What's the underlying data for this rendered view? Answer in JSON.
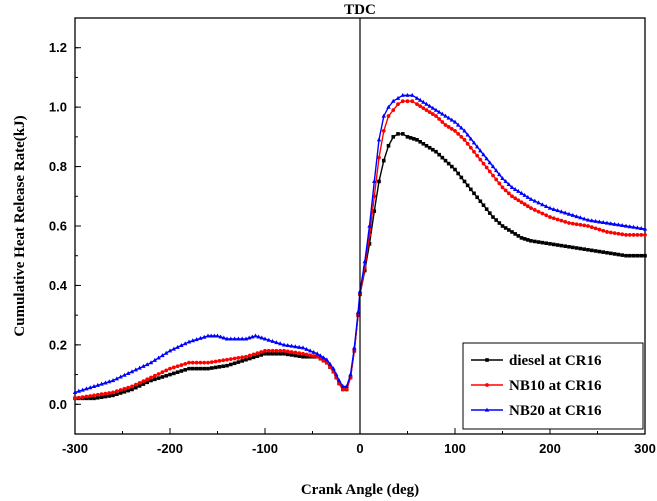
{
  "chart_data": {
    "type": "line",
    "xlabel": "Crank Angle (deg)",
    "ylabel": "Cumulative Heat Release Rate(kJ)",
    "xlim": [
      -300,
      300
    ],
    "ylim": [
      -0.1,
      1.3
    ],
    "xticks": [
      -300,
      -200,
      -100,
      0,
      100,
      200,
      300
    ],
    "yticks": [
      0.0,
      0.2,
      0.4,
      0.6,
      0.8,
      1.0,
      1.2
    ],
    "xtick_labels": [
      "-300",
      "-200",
      "-100",
      "0",
      "100",
      "200",
      "300"
    ],
    "ytick_labels": [
      "0.0",
      "0.2",
      "0.4",
      "0.6",
      "0.8",
      "1.0",
      "1.2"
    ],
    "annotations": [
      {
        "text": "TDC",
        "x": 0
      }
    ],
    "legend_position": "bottom-right",
    "grid": false,
    "series": [
      {
        "name": "diesel at CR16",
        "color": "#000000",
        "marker": "square",
        "points": [
          [
            -300,
            0.02
          ],
          [
            -280,
            0.02
          ],
          [
            -260,
            0.03
          ],
          [
            -240,
            0.05
          ],
          [
            -220,
            0.08
          ],
          [
            -200,
            0.1
          ],
          [
            -180,
            0.12
          ],
          [
            -160,
            0.12
          ],
          [
            -140,
            0.13
          ],
          [
            -120,
            0.15
          ],
          [
            -100,
            0.17
          ],
          [
            -80,
            0.17
          ],
          [
            -60,
            0.16
          ],
          [
            -45,
            0.16
          ],
          [
            -35,
            0.14
          ],
          [
            -28,
            0.11
          ],
          [
            -22,
            0.07
          ],
          [
            -18,
            0.05
          ],
          [
            -14,
            0.05
          ],
          [
            -10,
            0.09
          ],
          [
            -6,
            0.18
          ],
          [
            -2,
            0.3
          ],
          [
            0,
            0.37
          ],
          [
            5,
            0.45
          ],
          [
            10,
            0.54
          ],
          [
            15,
            0.65
          ],
          [
            20,
            0.75
          ],
          [
            25,
            0.82
          ],
          [
            30,
            0.87
          ],
          [
            35,
            0.9
          ],
          [
            40,
            0.91
          ],
          [
            45,
            0.91
          ],
          [
            50,
            0.9
          ],
          [
            60,
            0.89
          ],
          [
            70,
            0.87
          ],
          [
            80,
            0.85
          ],
          [
            90,
            0.82
          ],
          [
            100,
            0.79
          ],
          [
            110,
            0.75
          ],
          [
            120,
            0.71
          ],
          [
            130,
            0.67
          ],
          [
            140,
            0.63
          ],
          [
            150,
            0.6
          ],
          [
            160,
            0.58
          ],
          [
            170,
            0.56
          ],
          [
            180,
            0.55
          ],
          [
            200,
            0.54
          ],
          [
            220,
            0.53
          ],
          [
            240,
            0.52
          ],
          [
            260,
            0.51
          ],
          [
            280,
            0.5
          ],
          [
            300,
            0.5
          ]
        ]
      },
      {
        "name": "NB10 at CR16",
        "color": "#ff0000",
        "marker": "circle",
        "points": [
          [
            -300,
            0.02
          ],
          [
            -280,
            0.03
          ],
          [
            -260,
            0.04
          ],
          [
            -240,
            0.06
          ],
          [
            -220,
            0.09
          ],
          [
            -200,
            0.12
          ],
          [
            -180,
            0.14
          ],
          [
            -160,
            0.14
          ],
          [
            -140,
            0.15
          ],
          [
            -120,
            0.16
          ],
          [
            -100,
            0.18
          ],
          [
            -80,
            0.18
          ],
          [
            -60,
            0.17
          ],
          [
            -45,
            0.16
          ],
          [
            -35,
            0.14
          ],
          [
            -28,
            0.11
          ],
          [
            -22,
            0.07
          ],
          [
            -18,
            0.05
          ],
          [
            -14,
            0.05
          ],
          [
            -10,
            0.09
          ],
          [
            -6,
            0.18
          ],
          [
            -2,
            0.3
          ],
          [
            0,
            0.37
          ],
          [
            5,
            0.46
          ],
          [
            10,
            0.57
          ],
          [
            15,
            0.7
          ],
          [
            20,
            0.83
          ],
          [
            25,
            0.92
          ],
          [
            30,
            0.97
          ],
          [
            35,
            0.99
          ],
          [
            40,
            1.01
          ],
          [
            45,
            1.02
          ],
          [
            50,
            1.02
          ],
          [
            55,
            1.02
          ],
          [
            60,
            1.01
          ],
          [
            70,
            0.99
          ],
          [
            80,
            0.97
          ],
          [
            90,
            0.94
          ],
          [
            100,
            0.92
          ],
          [
            110,
            0.89
          ],
          [
            120,
            0.85
          ],
          [
            130,
            0.81
          ],
          [
            140,
            0.77
          ],
          [
            150,
            0.73
          ],
          [
            160,
            0.7
          ],
          [
            170,
            0.68
          ],
          [
            180,
            0.66
          ],
          [
            200,
            0.63
          ],
          [
            220,
            0.61
          ],
          [
            240,
            0.6
          ],
          [
            260,
            0.58
          ],
          [
            280,
            0.57
          ],
          [
            300,
            0.57
          ]
        ]
      },
      {
        "name": "NB20 at CR16",
        "color": "#0000ff",
        "marker": "triangle",
        "points": [
          [
            -300,
            0.04
          ],
          [
            -280,
            0.06
          ],
          [
            -260,
            0.08
          ],
          [
            -240,
            0.11
          ],
          [
            -220,
            0.14
          ],
          [
            -200,
            0.18
          ],
          [
            -180,
            0.21
          ],
          [
            -160,
            0.23
          ],
          [
            -150,
            0.23
          ],
          [
            -140,
            0.22
          ],
          [
            -120,
            0.22
          ],
          [
            -110,
            0.23
          ],
          [
            -100,
            0.22
          ],
          [
            -80,
            0.2
          ],
          [
            -60,
            0.19
          ],
          [
            -45,
            0.17
          ],
          [
            -35,
            0.15
          ],
          [
            -28,
            0.12
          ],
          [
            -22,
            0.08
          ],
          [
            -18,
            0.06
          ],
          [
            -14,
            0.06
          ],
          [
            -10,
            0.1
          ],
          [
            -6,
            0.19
          ],
          [
            -2,
            0.31
          ],
          [
            0,
            0.38
          ],
          [
            5,
            0.48
          ],
          [
            10,
            0.6
          ],
          [
            15,
            0.75
          ],
          [
            20,
            0.89
          ],
          [
            25,
            0.97
          ],
          [
            30,
            1.0
          ],
          [
            35,
            1.02
          ],
          [
            40,
            1.03
          ],
          [
            45,
            1.04
          ],
          [
            50,
            1.04
          ],
          [
            55,
            1.04
          ],
          [
            60,
            1.03
          ],
          [
            70,
            1.01
          ],
          [
            80,
            0.99
          ],
          [
            90,
            0.97
          ],
          [
            100,
            0.95
          ],
          [
            110,
            0.92
          ],
          [
            120,
            0.88
          ],
          [
            130,
            0.84
          ],
          [
            140,
            0.8
          ],
          [
            150,
            0.76
          ],
          [
            160,
            0.73
          ],
          [
            170,
            0.71
          ],
          [
            180,
            0.69
          ],
          [
            200,
            0.66
          ],
          [
            220,
            0.64
          ],
          [
            240,
            0.62
          ],
          [
            260,
            0.61
          ],
          [
            280,
            0.6
          ],
          [
            300,
            0.59
          ]
        ]
      }
    ]
  }
}
